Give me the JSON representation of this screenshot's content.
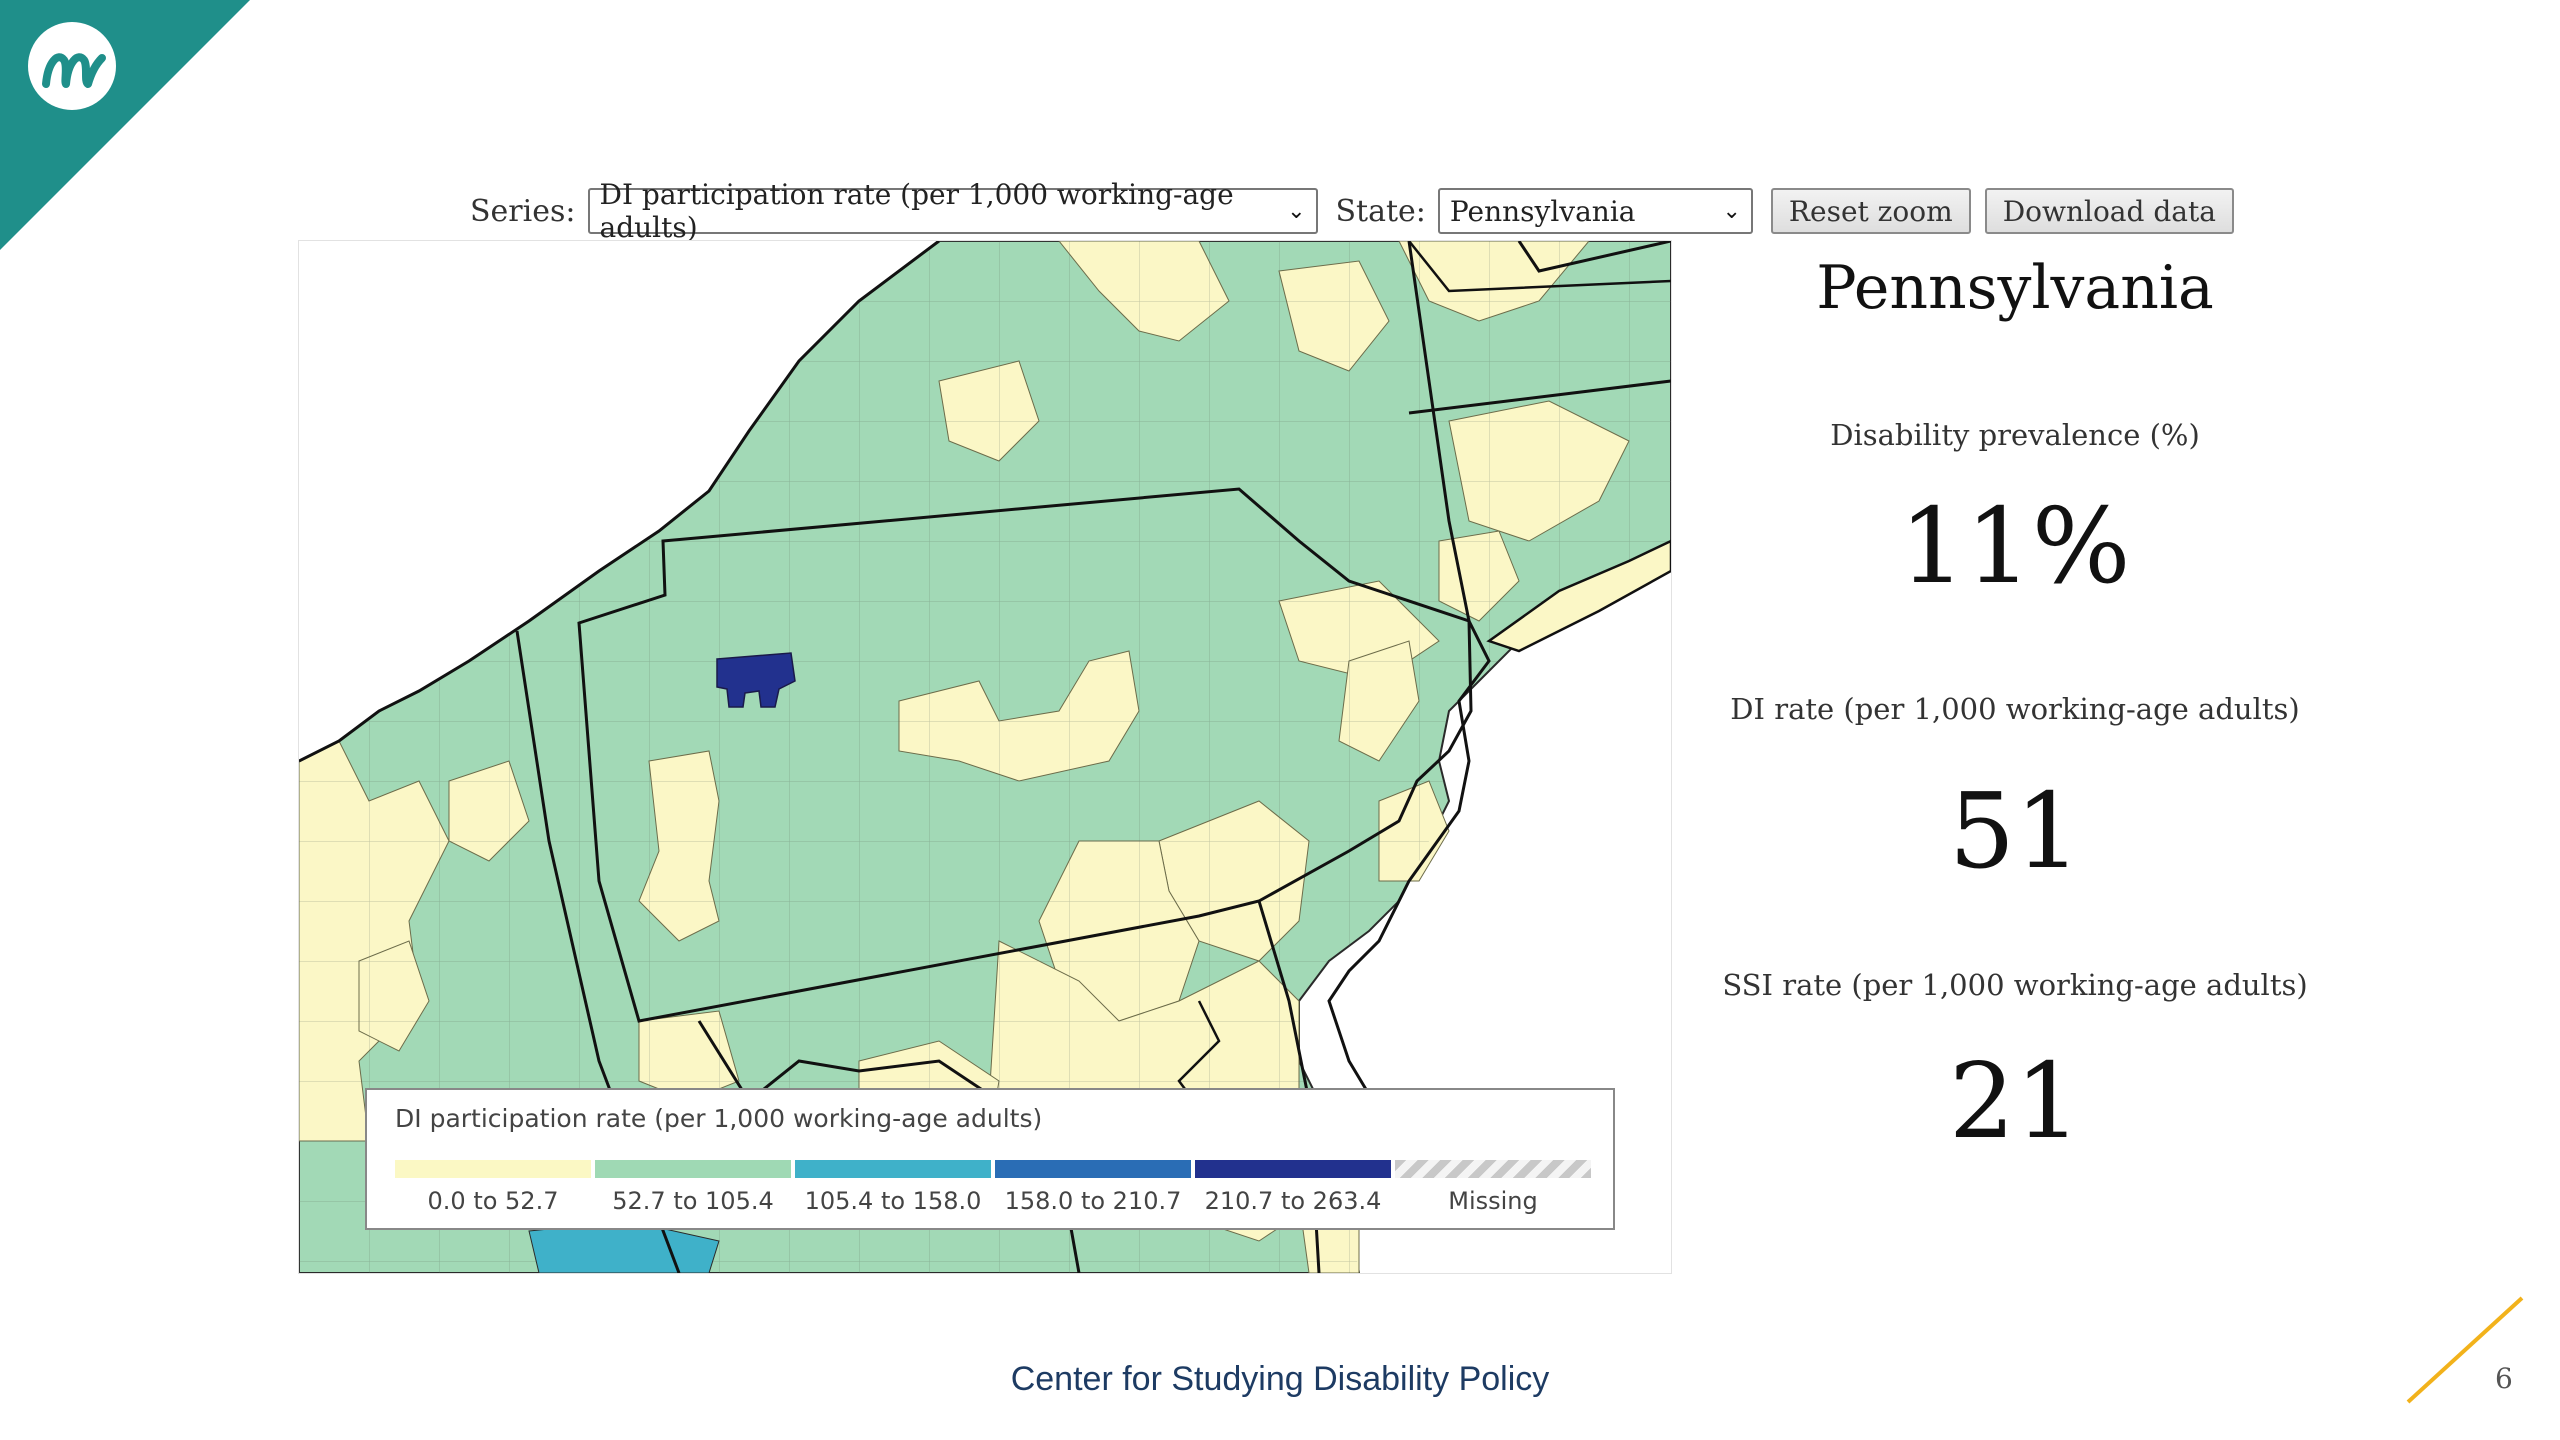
{
  "logo": {
    "icon": "mathematica-m-logo",
    "color": "#1f8f8a"
  },
  "controls": {
    "series_label": "Series:",
    "series_value": "DI participation rate (per 1,000 working-age adults)",
    "state_label": "State:",
    "state_value": "Pennsylvania",
    "reset_label": "Reset zoom",
    "download_label": "Download data"
  },
  "map": {
    "selected_state": "Pennsylvania",
    "legend": {
      "title": "DI participation rate (per 1,000 working-age adults)",
      "bins": [
        {
          "label": "0.0 to 52.7",
          "color": "#fbf8c4"
        },
        {
          "label": "52.7 to 105.4",
          "color": "#9fd9b4"
        },
        {
          "label": "105.4 to 158.0",
          "color": "#3fb1c9"
        },
        {
          "label": "158.0 to 210.7",
          "color": "#2a6db5"
        },
        {
          "label": "210.7 to 263.4",
          "color": "#22318e"
        },
        {
          "label": "Missing",
          "color": "#cccccc"
        }
      ]
    }
  },
  "summary": {
    "state_title": "Pennsylvania",
    "stats": [
      {
        "label": "Disability prevalence (%)",
        "value": "11%"
      },
      {
        "label": "DI rate (per 1,000 working-age adults)",
        "value": "51"
      },
      {
        "label": "SSI rate (per 1,000 working-age adults)",
        "value": "21"
      }
    ]
  },
  "footer": {
    "title": "Center for Studying Disability Policy",
    "page": "6"
  },
  "colors": {
    "teal": "#1f8f8a",
    "navy": "#1d3b63",
    "accent": "#f2b21b"
  }
}
